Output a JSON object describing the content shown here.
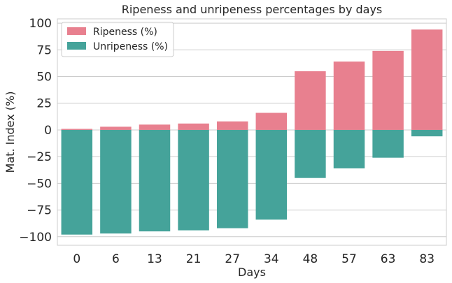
{
  "chart_data": {
    "type": "bar",
    "title": "Ripeness and unripeness percentages by days",
    "xlabel": "Days",
    "ylabel": "Mat. Index (%)",
    "categories": [
      "0",
      "6",
      "13",
      "21",
      "27",
      "34",
      "48",
      "57",
      "63",
      "83"
    ],
    "series": [
      {
        "name": "Ripeness (%)",
        "color": "#e8808f",
        "values": [
          1,
          3,
          5,
          6,
          8,
          16,
          55,
          64,
          74,
          94
        ]
      },
      {
        "name": "Unripeness (%)",
        "color": "#45a39a",
        "values": [
          -98,
          -97,
          -95,
          -94,
          -92,
          -84,
          -45,
          -36,
          -26,
          -6
        ]
      }
    ],
    "ylim": [
      -108,
      104
    ],
    "yticks": [
      -100,
      -75,
      -50,
      -25,
      0,
      25,
      50,
      75,
      100
    ],
    "ytick_labels": [
      "−100",
      "−75",
      "−50",
      "−25",
      "0",
      "25",
      "50",
      "75",
      "100"
    ],
    "grid": "horizontal",
    "legend": "top-left"
  }
}
